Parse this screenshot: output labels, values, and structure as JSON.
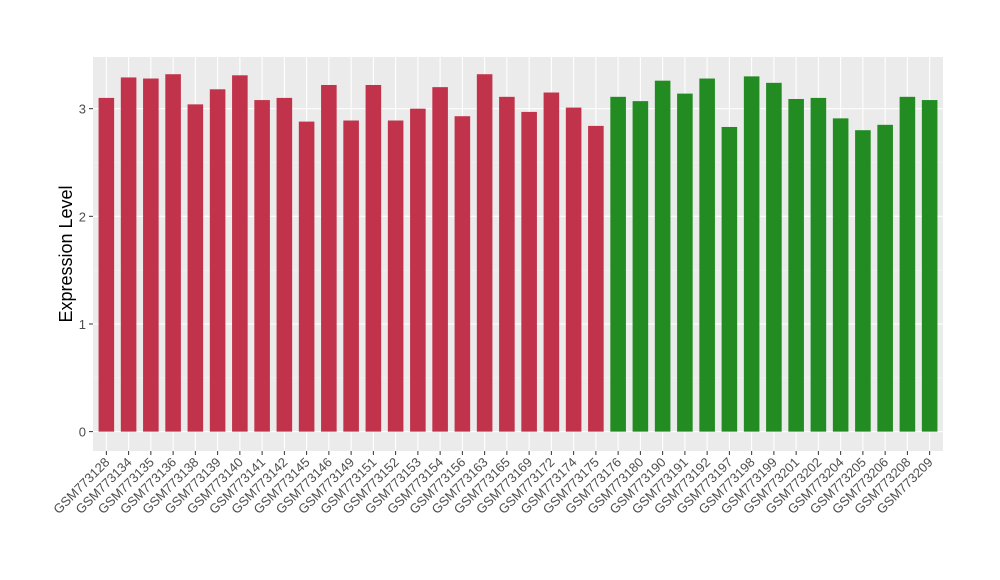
{
  "chart_data": {
    "type": "bar",
    "title": "",
    "xlabel": "",
    "ylabel": "Expression Level",
    "ylim": [
      -0.18,
      3.48
    ],
    "yticks": [
      0,
      1,
      2,
      3
    ],
    "ytick_labels": [
      "0",
      "1",
      "2",
      "3"
    ],
    "grid": true,
    "categories": [
      "GSM773128",
      "GSM773134",
      "GSM773135",
      "GSM773136",
      "GSM773138",
      "GSM773139",
      "GSM773140",
      "GSM773141",
      "GSM773142",
      "GSM773145",
      "GSM773146",
      "GSM773149",
      "GSM773151",
      "GSM773152",
      "GSM773153",
      "GSM773154",
      "GSM773156",
      "GSM773163",
      "GSM773165",
      "GSM773169",
      "GSM773172",
      "GSM773174",
      "GSM773175",
      "GSM773176",
      "GSM773180",
      "GSM773190",
      "GSM773191",
      "GSM773192",
      "GSM773197",
      "GSM773198",
      "GSM773199",
      "GSM773201",
      "GSM773202",
      "GSM773204",
      "GSM773205",
      "GSM773206",
      "GSM773208",
      "GSM773209"
    ],
    "values": [
      3.1,
      3.29,
      3.28,
      3.32,
      3.04,
      3.18,
      3.31,
      3.08,
      3.1,
      2.88,
      3.22,
      2.89,
      3.22,
      2.89,
      3.0,
      3.2,
      2.93,
      3.32,
      3.11,
      2.97,
      3.15,
      3.01,
      2.84,
      3.11,
      3.07,
      3.26,
      3.14,
      3.28,
      2.83,
      3.3,
      3.24,
      3.09,
      3.1,
      2.91,
      2.8,
      2.85,
      3.11,
      3.08
    ],
    "bar_colors": [
      "#c1334a",
      "#c1334a",
      "#c1334a",
      "#c1334a",
      "#c1334a",
      "#c1334a",
      "#c1334a",
      "#c1334a",
      "#c1334a",
      "#c1334a",
      "#c1334a",
      "#c1334a",
      "#c1334a",
      "#c1334a",
      "#c1334a",
      "#c1334a",
      "#c1334a",
      "#c1334a",
      "#c1334a",
      "#c1334a",
      "#c1334a",
      "#c1334a",
      "#c1334a",
      "#228b22",
      "#228b22",
      "#228b22",
      "#228b22",
      "#228b22",
      "#228b22",
      "#228b22",
      "#228b22",
      "#228b22",
      "#228b22",
      "#228b22",
      "#228b22",
      "#228b22",
      "#228b22",
      "#228b22"
    ],
    "colors": {
      "group_a": "#c1334a",
      "group_b": "#228b22",
      "panel_bg": "#ebebeb",
      "grid_major": "#ffffff",
      "grid_minor": "#f5f5f5"
    }
  }
}
